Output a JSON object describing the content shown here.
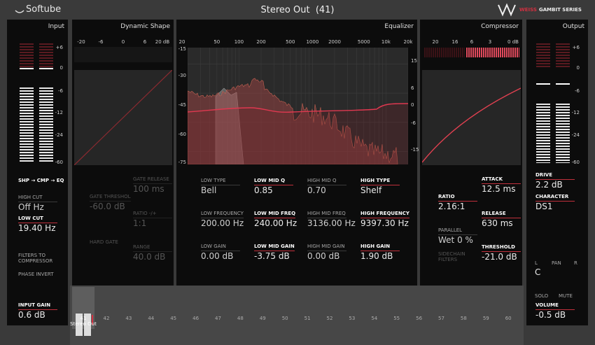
{
  "header": {
    "brand": "Softube",
    "title": "Stereo Out  (41)",
    "logo_accent": "WEISS",
    "logo_text": "GAMBIT SERIES"
  },
  "input": {
    "title": "Input",
    "scale": [
      "+6",
      "0",
      "-6",
      "-12",
      "-24",
      "-60"
    ],
    "routing": "SHP → CMP → EQ",
    "high_cut": {
      "label": "HIGH CUT",
      "value": "Off Hz"
    },
    "low_cut": {
      "label": "LOW CUT",
      "value": "19.40 Hz"
    },
    "filters_to_compressor": "FILTERS TO COMPRESSOR",
    "phase_invert": "PHASE INVERT",
    "input_gain": {
      "label": "INPUT GAIN",
      "value": "0.6 dB"
    }
  },
  "dynamic_shape": {
    "title": "Dynamic Shape",
    "scale": [
      "-20",
      "-6",
      "0",
      "6",
      "20 dB"
    ],
    "gate_threshold": {
      "label": "GATE THRESHOL",
      "value": "-60.0 dB"
    },
    "gate_release": {
      "label": "GATE RELEASE",
      "value": "100 ms"
    },
    "ratio": {
      "label": "RATIO -/+",
      "value": "1:1"
    },
    "hard_gate": "HARD GATE",
    "range": {
      "label": "RANGE",
      "value": "40.0 dB"
    }
  },
  "equalizer": {
    "title": "Equalizer",
    "freq_scale": [
      "20",
      "50",
      "100",
      "200",
      "500",
      "1000",
      "2000",
      "5000",
      "10k",
      "20k"
    ],
    "db_scale_left": [
      "-15",
      "-30",
      "-45",
      "-60",
      "-75"
    ],
    "db_scale_right": [
      "15",
      "6",
      "0",
      "-6",
      "-15"
    ],
    "params": [
      [
        {
          "label": "LOW TYPE",
          "value": "Bell"
        },
        {
          "label": "LOW MID Q",
          "value": "0.85"
        },
        {
          "label": "HIGH MID Q",
          "value": "0.70"
        },
        {
          "label": "HIGH TYPE",
          "value": "Shelf"
        }
      ],
      [
        {
          "label": "LOW FREQUENCY",
          "value": "200.00 Hz"
        },
        {
          "label": "LOW MID FREQ",
          "value": "240.00 Hz"
        },
        {
          "label": "HIGH MID FREQ",
          "value": "3136.00 Hz"
        },
        {
          "label": "HIGH FREQUENCY",
          "value": "9397.30 Hz"
        }
      ],
      [
        {
          "label": "LOW GAIN",
          "value": "0.00 dB"
        },
        {
          "label": "LOW MID GAIN",
          "value": "-3.75 dB"
        },
        {
          "label": "HIGH MID GAIN",
          "value": "0.00 dB"
        },
        {
          "label": "HIGH GAIN",
          "value": "1.90 dB"
        }
      ]
    ]
  },
  "compressor": {
    "title": "Compressor",
    "scale": [
      "20",
      "16",
      "6",
      "3",
      "0 dB"
    ],
    "attack": {
      "label": "ATTACK",
      "value": "12.5 ms"
    },
    "ratio": {
      "label": "RATIO",
      "value": "2.16:1"
    },
    "release": {
      "label": "RELEASE",
      "value": "630 ms"
    },
    "parallel": {
      "label": "PARALLEL",
      "value": "Wet 0 %"
    },
    "sidechain_filters": "SIDECHAIN FILTERS",
    "threshold": {
      "label": "THRESHOLD",
      "value": "-21.0 dB"
    }
  },
  "output": {
    "title": "Output",
    "scale": [
      "+6",
      "0",
      "-6",
      "-12",
      "-24",
      "-60"
    ],
    "drive": {
      "label": "DRIVE",
      "value": "2.2 dB"
    },
    "character": {
      "label": "CHARACTER",
      "value": "DS1"
    },
    "pan": {
      "left": "L",
      "label": "PAN",
      "right": "R",
      "value": "C"
    },
    "solo": "SOLO",
    "mute": "MUTE",
    "volume": {
      "label": "VOLUME",
      "value": "-0.5 dB"
    }
  },
  "tracks": {
    "selected": {
      "number": "41",
      "name": "Stereo Out"
    },
    "numbers": [
      "42",
      "43",
      "44",
      "45",
      "46",
      "47",
      "48",
      "49",
      "50",
      "51",
      "52",
      "53",
      "54",
      "55",
      "56",
      "57",
      "58",
      "59",
      "60"
    ]
  }
}
